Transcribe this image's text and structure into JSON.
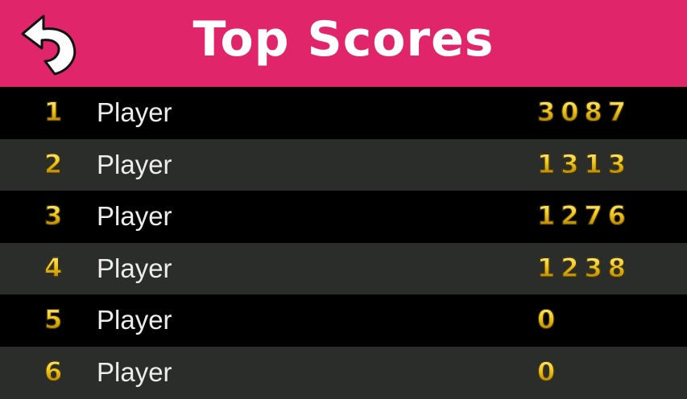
{
  "header": {
    "title": "Top Scores",
    "back_icon": "curved-back-arrow-icon",
    "color": "#e0256a"
  },
  "scores": [
    {
      "rank": "1",
      "name": "Player",
      "score": "3087"
    },
    {
      "rank": "2",
      "name": "Player",
      "score": "1313"
    },
    {
      "rank": "3",
      "name": "Player",
      "score": "1276"
    },
    {
      "rank": "4",
      "name": "Player",
      "score": "1238"
    },
    {
      "rank": "5",
      "name": "Player",
      "score": "0"
    },
    {
      "rank": "6",
      "name": "Player",
      "score": "0"
    }
  ]
}
